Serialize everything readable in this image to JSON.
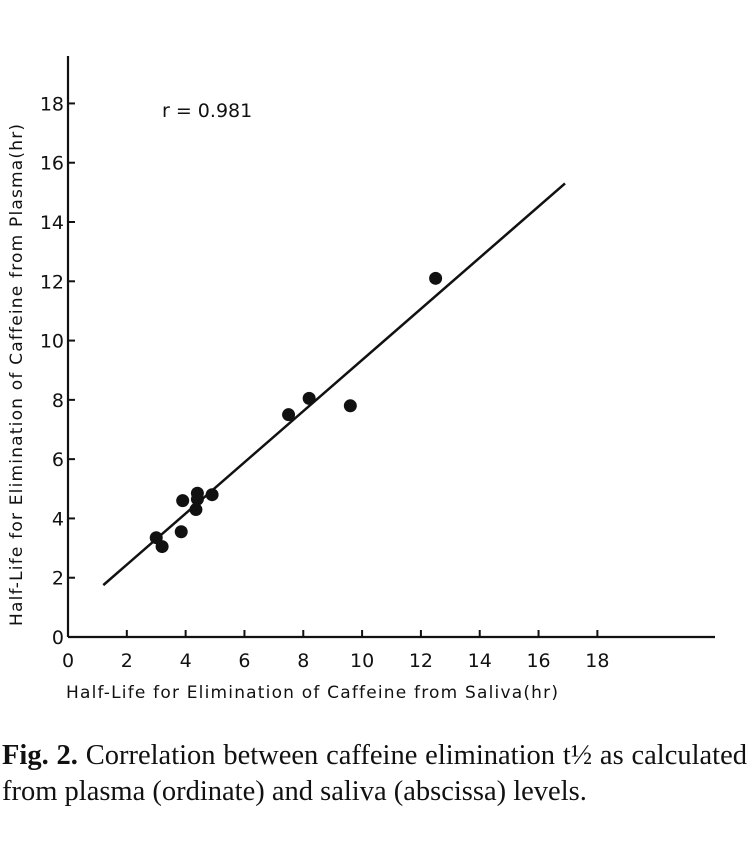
{
  "chart_data": {
    "type": "scatter",
    "xlabel": "Half-Life for Elimination of Caffeine from Saliva(hr)",
    "ylabel": "Half-Life for Elimination of Caffeine from Plasma(hr)",
    "xlim": [
      0,
      22
    ],
    "ylim": [
      0,
      19.6
    ],
    "x_ticks": [
      0,
      2,
      4,
      6,
      8,
      10,
      12,
      14,
      16,
      18
    ],
    "y_ticks": [
      0,
      2,
      4,
      6,
      8,
      10,
      12,
      14,
      16,
      18
    ],
    "grid": false,
    "annotation": "r = 0.981",
    "points": [
      {
        "x": 3.0,
        "y": 3.35
      },
      {
        "x": 3.2,
        "y": 3.05
      },
      {
        "x": 3.85,
        "y": 3.55
      },
      {
        "x": 3.9,
        "y": 4.6
      },
      {
        "x": 4.35,
        "y": 4.3
      },
      {
        "x": 4.4,
        "y": 4.65
      },
      {
        "x": 4.4,
        "y": 4.85
      },
      {
        "x": 4.9,
        "y": 4.8
      },
      {
        "x": 7.5,
        "y": 7.5
      },
      {
        "x": 8.2,
        "y": 8.05
      },
      {
        "x": 9.6,
        "y": 7.8
      },
      {
        "x": 12.5,
        "y": 12.1
      }
    ],
    "fit_line": {
      "x": [
        1.2,
        16.9
      ],
      "y": [
        1.75,
        15.3
      ]
    }
  },
  "caption": {
    "label": "Fig. 2.",
    "text": " Correlation between caffeine elimination t½ as calculated from plasma (ordinate) and saliva (abscissa) levels."
  }
}
